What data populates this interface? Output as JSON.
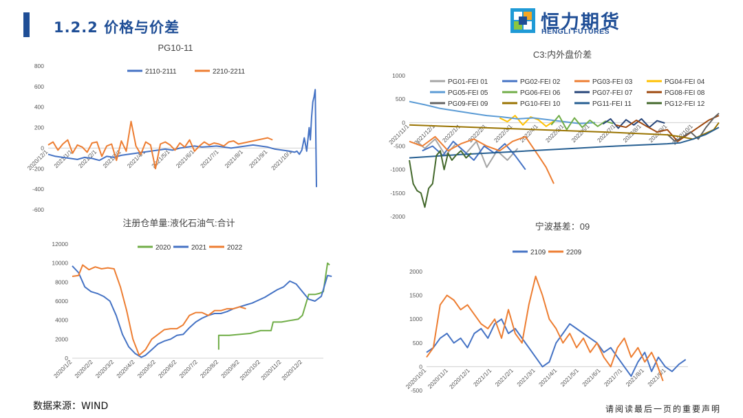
{
  "header": {
    "title": "1.2.2 价格与价差"
  },
  "logo": {
    "cn": "恒力期货",
    "en": "HENGLI FUTURES"
  },
  "footer": {
    "source": "数据来源：WIND",
    "disclaimer": "请阅读最后一页的重要声明"
  },
  "colors": {
    "accent": "#1f4e96",
    "blue": "#4472c4",
    "orange": "#ed7d31",
    "green": "#70ad47"
  },
  "chart_data": [
    {
      "id": "pg1011",
      "type": "line",
      "title": "PG10-11",
      "ylim": [
        -600,
        800
      ],
      "yticks": [
        -600,
        -400,
        -200,
        0,
        200,
        400,
        600,
        800
      ],
      "xticks": [
        "2020/12/1",
        "2021/1/1",
        "2021/2/1",
        "2021/3/1",
        "2021/4/1",
        "2021/5/1",
        "2021/6/1",
        "2021/7/1",
        "2021/8/1",
        "2021/9/1",
        "2021/10/1"
      ],
      "xlim": [
        0,
        11
      ],
      "series": [
        {
          "name": "2110-2111",
          "color": "#4472c4",
          "x": [
            0,
            0.3,
            0.6,
            0.9,
            1.2,
            1.5,
            1.8,
            2.1,
            2.4,
            2.7,
            3.0,
            3.3,
            3.6,
            3.9,
            4.2,
            4.5,
            4.8,
            5.1,
            5.4,
            5.7,
            6.0,
            6.3,
            6.6,
            6.9,
            7.2,
            7.5,
            7.8,
            8.1,
            8.4,
            8.7,
            9.0,
            9.3,
            9.6,
            9.9,
            10.1,
            10.2,
            10.3,
            10.4,
            10.5,
            10.6,
            10.7,
            10.75,
            10.8,
            10.85,
            10.9,
            10.95,
            11.0
          ],
          "y": [
            -60,
            -80,
            -90,
            -100,
            -110,
            -90,
            -100,
            -120,
            -80,
            -90,
            -70,
            -60,
            -50,
            -40,
            -30,
            -20,
            -10,
            -20,
            0,
            10,
            20,
            10,
            15,
            20,
            10,
            0,
            10,
            20,
            30,
            20,
            10,
            -10,
            -20,
            -30,
            -40,
            -30,
            -60,
            -20,
            100,
            -30,
            200,
            80,
            300,
            450,
            500,
            570,
            -380
          ]
        },
        {
          "name": "2210-2211",
          "color": "#ed7d31",
          "x": [
            0,
            0.2,
            0.4,
            0.6,
            0.8,
            1.0,
            1.2,
            1.4,
            1.6,
            1.8,
            2.0,
            2.2,
            2.4,
            2.6,
            2.8,
            3.0,
            3.2,
            3.4,
            3.6,
            3.8,
            4.0,
            4.2,
            4.4,
            4.6,
            4.8,
            5.0,
            5.2,
            5.4,
            5.6,
            5.8,
            6.0,
            6.2,
            6.4,
            6.6,
            6.8,
            7.0,
            7.2,
            7.4,
            7.6,
            7.8,
            8.0,
            8.2,
            8.4,
            8.6,
            8.8,
            9.0,
            9.2
          ],
          "y": [
            30,
            60,
            -20,
            40,
            80,
            -50,
            30,
            10,
            -40,
            50,
            60,
            -80,
            20,
            40,
            -120,
            70,
            -30,
            260,
            20,
            -60,
            60,
            30,
            -200,
            40,
            60,
            30,
            -20,
            50,
            10,
            80,
            -30,
            20,
            60,
            30,
            50,
            40,
            20,
            60,
            70,
            40,
            50,
            60,
            70,
            80,
            90,
            100,
            80
          ]
        }
      ]
    },
    {
      "id": "c3",
      "type": "line",
      "title": "C3:内外盘价差",
      "ylim": [
        -2000,
        1000
      ],
      "yticks": [
        -2000,
        -1500,
        -1000,
        -500,
        0,
        500,
        1000
      ],
      "xticks": [
        "2021/11/1",
        "2021/12/1",
        "2022/1/1",
        "2022/2/1",
        "2022/3/1",
        "2022/4/1",
        "2022/5/1",
        "2022/6/1",
        "2022/7/1",
        "2022/8/1",
        "2022/9/1",
        "2022/10/1"
      ],
      "xlim": [
        0,
        12
      ],
      "series": [
        {
          "name": "PG01-FEI 01",
          "color": "#a5a5a5",
          "x": [
            0.3,
            0.6,
            1.0,
            1.4,
            1.8,
            2.2,
            2.6,
            3.0,
            3.4,
            3.8,
            4.2
          ],
          "y": [
            -400,
            -550,
            -350,
            -700,
            -450,
            -650,
            -400,
            -950,
            -600,
            -800,
            -550
          ]
        },
        {
          "name": "PG02-FEI 02",
          "color": "#4472c4",
          "x": [
            0.5,
            0.9,
            1.3,
            1.7,
            2.1,
            2.5,
            2.9,
            3.3,
            3.7,
            4.1,
            4.5
          ],
          "y": [
            -600,
            -500,
            -700,
            -400,
            -600,
            -800,
            -500,
            -650,
            -450,
            -700,
            -1000
          ]
        },
        {
          "name": "PG03-FEI 03",
          "color": "#ed7d31",
          "x": [
            0,
            0.5,
            1.0,
            1.5,
            2.0,
            2.5,
            3.0,
            3.5,
            4.0,
            4.5,
            5.0,
            5.3,
            5.6
          ],
          "y": [
            -400,
            -500,
            -300,
            -600,
            -450,
            -350,
            -500,
            -600,
            -400,
            -300,
            -700,
            -950,
            -1300
          ]
        },
        {
          "name": "PG04-FEI 04",
          "color": "#ffc000",
          "x": [
            3.5,
            3.8,
            4.1,
            4.4,
            4.7,
            5.0,
            5.3,
            5.6
          ],
          "y": [
            100,
            20,
            150,
            -50,
            120,
            60,
            -80,
            30
          ]
        },
        {
          "name": "PG05-FEI 05",
          "color": "#5b9bd5",
          "x": [
            0,
            0.6,
            1.2,
            1.8,
            2.4,
            3.0,
            3.6,
            4.2,
            4.8,
            5.4,
            6.0,
            6.6,
            7.2
          ],
          "y": [
            450,
            380,
            300,
            250,
            200,
            150,
            120,
            80,
            100,
            60,
            20,
            -20,
            0
          ]
        },
        {
          "name": "PG06-FEI 06",
          "color": "#70ad47",
          "x": [
            5.5,
            5.8,
            6.1,
            6.4,
            6.7,
            7.0,
            7.3,
            7.6,
            7.9
          ],
          "y": [
            -50,
            150,
            -150,
            100,
            -100,
            50,
            -80,
            30,
            -20
          ]
        },
        {
          "name": "PG07-FEI 07",
          "color": "#264478",
          "x": [
            7.5,
            7.8,
            8.1,
            8.4,
            8.7,
            9.0,
            9.3,
            9.6,
            9.9
          ],
          "y": [
            -30,
            80,
            -120,
            60,
            -50,
            80,
            -100,
            40,
            -10
          ]
        },
        {
          "name": "PG08-FEI 08",
          "color": "#9e480e",
          "x": [
            8.0,
            8.4,
            8.8,
            9.2,
            9.6,
            10.0,
            10.4,
            10.8,
            11.2,
            11.6,
            12.0
          ],
          "y": [
            -50,
            -100,
            50,
            -80,
            -200,
            -150,
            -400,
            -250,
            -100,
            50,
            150
          ]
        },
        {
          "name": "PG09-FEI 09",
          "color": "#636363",
          "x": [
            10.0,
            10.3,
            10.6,
            10.9,
            11.2,
            11.5,
            11.8,
            12.0
          ],
          "y": [
            -250,
            -400,
            -300,
            -200,
            -350,
            -100,
            100,
            200
          ]
        },
        {
          "name": "PG10-FEI 10",
          "color": "#997300",
          "x": [
            0,
            2,
            4,
            6,
            8,
            10,
            10.5,
            11,
            11.4,
            11.8,
            12.0
          ],
          "y": [
            -50,
            -90,
            -130,
            -170,
            -210,
            -260,
            -300,
            -350,
            -250,
            -150,
            0
          ]
        },
        {
          "name": "PG11-FEI 11",
          "color": "#255e91",
          "x": [
            0,
            2,
            4,
            6,
            8,
            10,
            10.5,
            11,
            11.5,
            12.0
          ],
          "y": [
            -750,
            -680,
            -620,
            -560,
            -500,
            -450,
            -430,
            -350,
            -250,
            -100
          ]
        },
        {
          "name": "PG12-FEI 12",
          "color": "#43682b",
          "x": [
            0,
            0.15,
            0.3,
            0.45,
            0.6,
            0.75,
            0.9,
            1.05,
            1.2,
            1.35,
            1.5,
            1.65,
            1.8,
            2.0,
            2.2,
            2.4
          ],
          "y": [
            -800,
            -1300,
            -1450,
            -1500,
            -1800,
            -1400,
            -1300,
            -700,
            -600,
            -1000,
            -650,
            -800,
            -700,
            -600,
            -750,
            -650
          ]
        }
      ]
    },
    {
      "id": "warehouse",
      "type": "line",
      "title": "注册仓单量:液化石油气:合计",
      "ylim": [
        0,
        12000
      ],
      "yticks": [
        0,
        2000,
        4000,
        6000,
        8000,
        10000,
        12000
      ],
      "xticks": [
        "2020/1/2",
        "2020/2/2",
        "2020/3/2",
        "2020/4/2",
        "2020/5/2",
        "2020/6/2",
        "2020/7/2",
        "2020/8/2",
        "2020/9/2",
        "2020/10/2",
        "2020/11/2",
        "2020/12/2"
      ],
      "xlim": [
        0,
        12
      ],
      "series": [
        {
          "name": "2020",
          "color": "#70ad47",
          "x": [
            7.0,
            7.0,
            7.5,
            8.0,
            8.5,
            9.0,
            9.5,
            9.6,
            10.0,
            10.5,
            10.8,
            11.0,
            11.3,
            11.6,
            11.8,
            12.0,
            12.2,
            12.3
          ],
          "y": [
            900,
            2400,
            2400,
            2500,
            2600,
            2900,
            2900,
            3800,
            3800,
            4000,
            4100,
            4500,
            6700,
            6700,
            6800,
            7000,
            10000,
            9800
          ]
        },
        {
          "name": "2021",
          "color": "#4472c4",
          "x": [
            0,
            0.3,
            0.6,
            0.9,
            1.2,
            1.5,
            1.8,
            2.1,
            2.4,
            2.7,
            3.0,
            3.3,
            3.5,
            3.8,
            4.1,
            4.4,
            4.7,
            5.0,
            5.3,
            5.6,
            5.9,
            6.2,
            6.5,
            6.8,
            7.1,
            7.4,
            7.7,
            8.0,
            8.3,
            8.6,
            8.9,
            9.2,
            9.5,
            9.8,
            10.1,
            10.4,
            10.7,
            11.0,
            11.3,
            11.6,
            11.9,
            12.2,
            12.4
          ],
          "y": [
            9700,
            9000,
            7500,
            7000,
            6800,
            6500,
            6000,
            4500,
            2500,
            1200,
            500,
            100,
            300,
            900,
            1500,
            1800,
            2000,
            2400,
            2500,
            3200,
            3800,
            4200,
            4500,
            4700,
            4700,
            4900,
            5200,
            5400,
            5600,
            5800,
            6100,
            6400,
            6800,
            7200,
            7500,
            8100,
            7800,
            7000,
            6200,
            6000,
            6500,
            8700,
            8600
          ]
        },
        {
          "name": "2022",
          "color": "#ed7d31",
          "x": [
            0,
            0.3,
            0.5,
            0.8,
            1.1,
            1.4,
            1.7,
            2.0,
            2.3,
            2.6,
            2.9,
            3.2,
            3.5,
            3.8,
            4.1,
            4.4,
            4.7,
            5.0,
            5.3,
            5.6,
            5.9,
            6.2,
            6.5,
            6.8,
            7.1,
            7.4,
            7.7,
            8.0,
            8.3
          ],
          "y": [
            8600,
            8700,
            9800,
            9300,
            9600,
            9400,
            9500,
            9400,
            7500,
            5000,
            2000,
            300,
            900,
            2000,
            2500,
            3000,
            3100,
            3100,
            3500,
            4500,
            4800,
            4800,
            4500,
            5000,
            5000,
            5200,
            5200,
            5400,
            5200
          ]
        }
      ]
    },
    {
      "id": "ningbo",
      "type": "line",
      "title": "宁波基差：09",
      "ylim": [
        -500,
        2000
      ],
      "yticks": [
        -500,
        0,
        500,
        1000,
        1500,
        2000
      ],
      "xticks": [
        "2020/10/1",
        "2020/11/1",
        "2020/12/1",
        "2021/1/1",
        "2021/2/1",
        "2021/3/1",
        "2021/4/1",
        "2021/5/1",
        "2021/6/1",
        "2021/7/1",
        "2021/8/1",
        "2021/9/1"
      ],
      "xlim": [
        0,
        11.5
      ],
      "series": [
        {
          "name": "2109",
          "color": "#4472c4",
          "x": [
            0,
            0.3,
            0.6,
            0.9,
            1.2,
            1.5,
            1.8,
            2.1,
            2.4,
            2.7,
            3.0,
            3.3,
            3.6,
            3.9,
            4.2,
            4.5,
            4.8,
            5.1,
            5.4,
            5.7,
            6.0,
            6.3,
            6.6,
            6.9,
            7.2,
            7.5,
            7.8,
            8.1,
            8.4,
            8.7,
            9.0,
            9.3,
            9.6,
            9.9,
            10.2,
            10.5,
            10.8,
            11.1,
            11.4
          ],
          "y": [
            300,
            400,
            600,
            700,
            500,
            600,
            400,
            700,
            800,
            600,
            900,
            1000,
            700,
            800,
            600,
            400,
            200,
            0,
            100,
            500,
            700,
            900,
            800,
            700,
            600,
            500,
            300,
            400,
            200,
            0,
            -200,
            100,
            300,
            -100,
            200,
            0,
            -100,
            50,
            150
          ]
        },
        {
          "name": "2209",
          "color": "#ed7d31",
          "x": [
            0,
            0.3,
            0.6,
            0.9,
            1.2,
            1.5,
            1.8,
            2.1,
            2.4,
            2.7,
            3.0,
            3.3,
            3.6,
            3.9,
            4.2,
            4.5,
            4.8,
            5.1,
            5.4,
            5.7,
            6.0,
            6.3,
            6.6,
            6.9,
            7.2,
            7.5,
            7.8,
            8.1,
            8.4,
            8.7,
            9.0,
            9.3,
            9.6,
            9.9,
            10.1,
            10.4
          ],
          "y": [
            200,
            400,
            1300,
            1500,
            1400,
            1200,
            1300,
            1100,
            900,
            800,
            1000,
            600,
            1200,
            700,
            500,
            1300,
            1900,
            1500,
            1000,
            800,
            500,
            700,
            400,
            600,
            300,
            500,
            200,
            0,
            400,
            600,
            200,
            400,
            100,
            300,
            100,
            -300
          ]
        }
      ]
    }
  ]
}
